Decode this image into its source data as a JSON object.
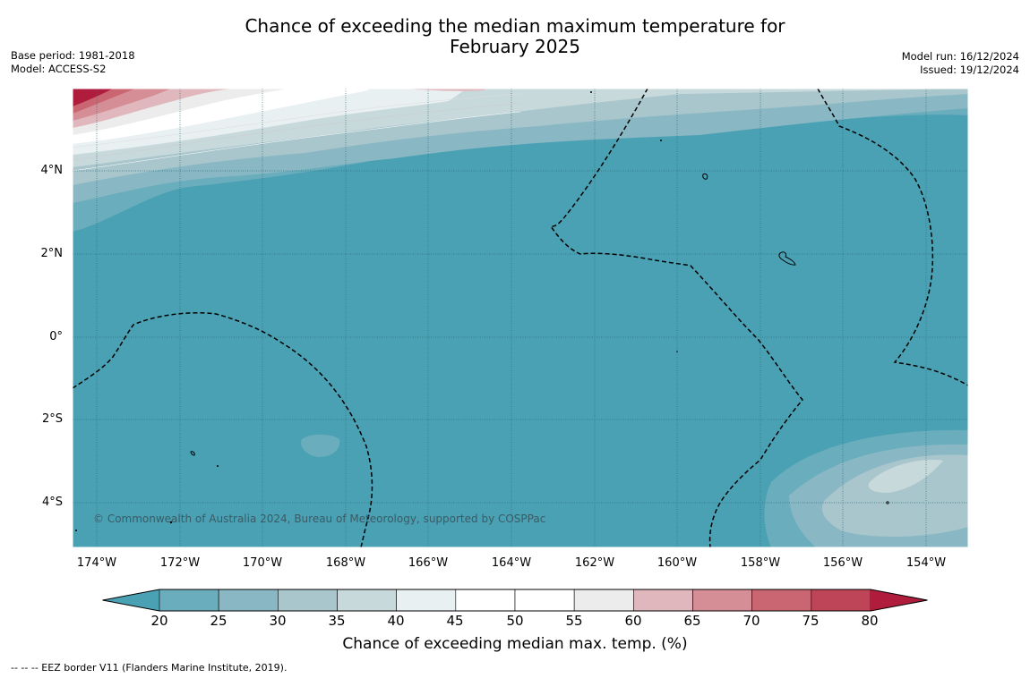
{
  "title_line1": "Chance of exceeding the median maximum temperature for",
  "title_line2": "February 2025",
  "base_period": "Base period: 1981-2018",
  "model": "Model: ACCESS-S2",
  "model_run": "Model run: 16/12/2024",
  "issued": "Issued: 19/12/2024",
  "copyright": "© Commonwealth of Australia 2024, Bureau of Meteorology, supported by COSPPac",
  "latitudes": [
    "4°N",
    "2°N",
    "0°",
    "2°S",
    "4°S"
  ],
  "longitudes": [
    "174°W",
    "172°W",
    "170°W",
    "168°W",
    "166°W",
    "164°W",
    "162°W",
    "160°W",
    "158°W",
    "156°W",
    "154°W"
  ],
  "legend": {
    "title": "Chance of exceeding median max. temp. (%)",
    "ticks": [
      "20",
      "25",
      "30",
      "35",
      "40",
      "45",
      "50",
      "55",
      "60",
      "65",
      "70",
      "75",
      "80"
    ],
    "colors": [
      "#4aa1b3",
      "#6aadbc",
      "#89b8c4",
      "#a9c6cc",
      "#c8d9dc",
      "#e8f0f1",
      "#ffffff",
      "#ffffff",
      "#ececec",
      "#e0b7bc",
      "#d58d96",
      "#c96671",
      "#bd4557",
      "#b01c3c"
    ]
  },
  "footnote": "--  --  -- EEZ border V11 (Flanders Marine Institute, 2019)."
}
